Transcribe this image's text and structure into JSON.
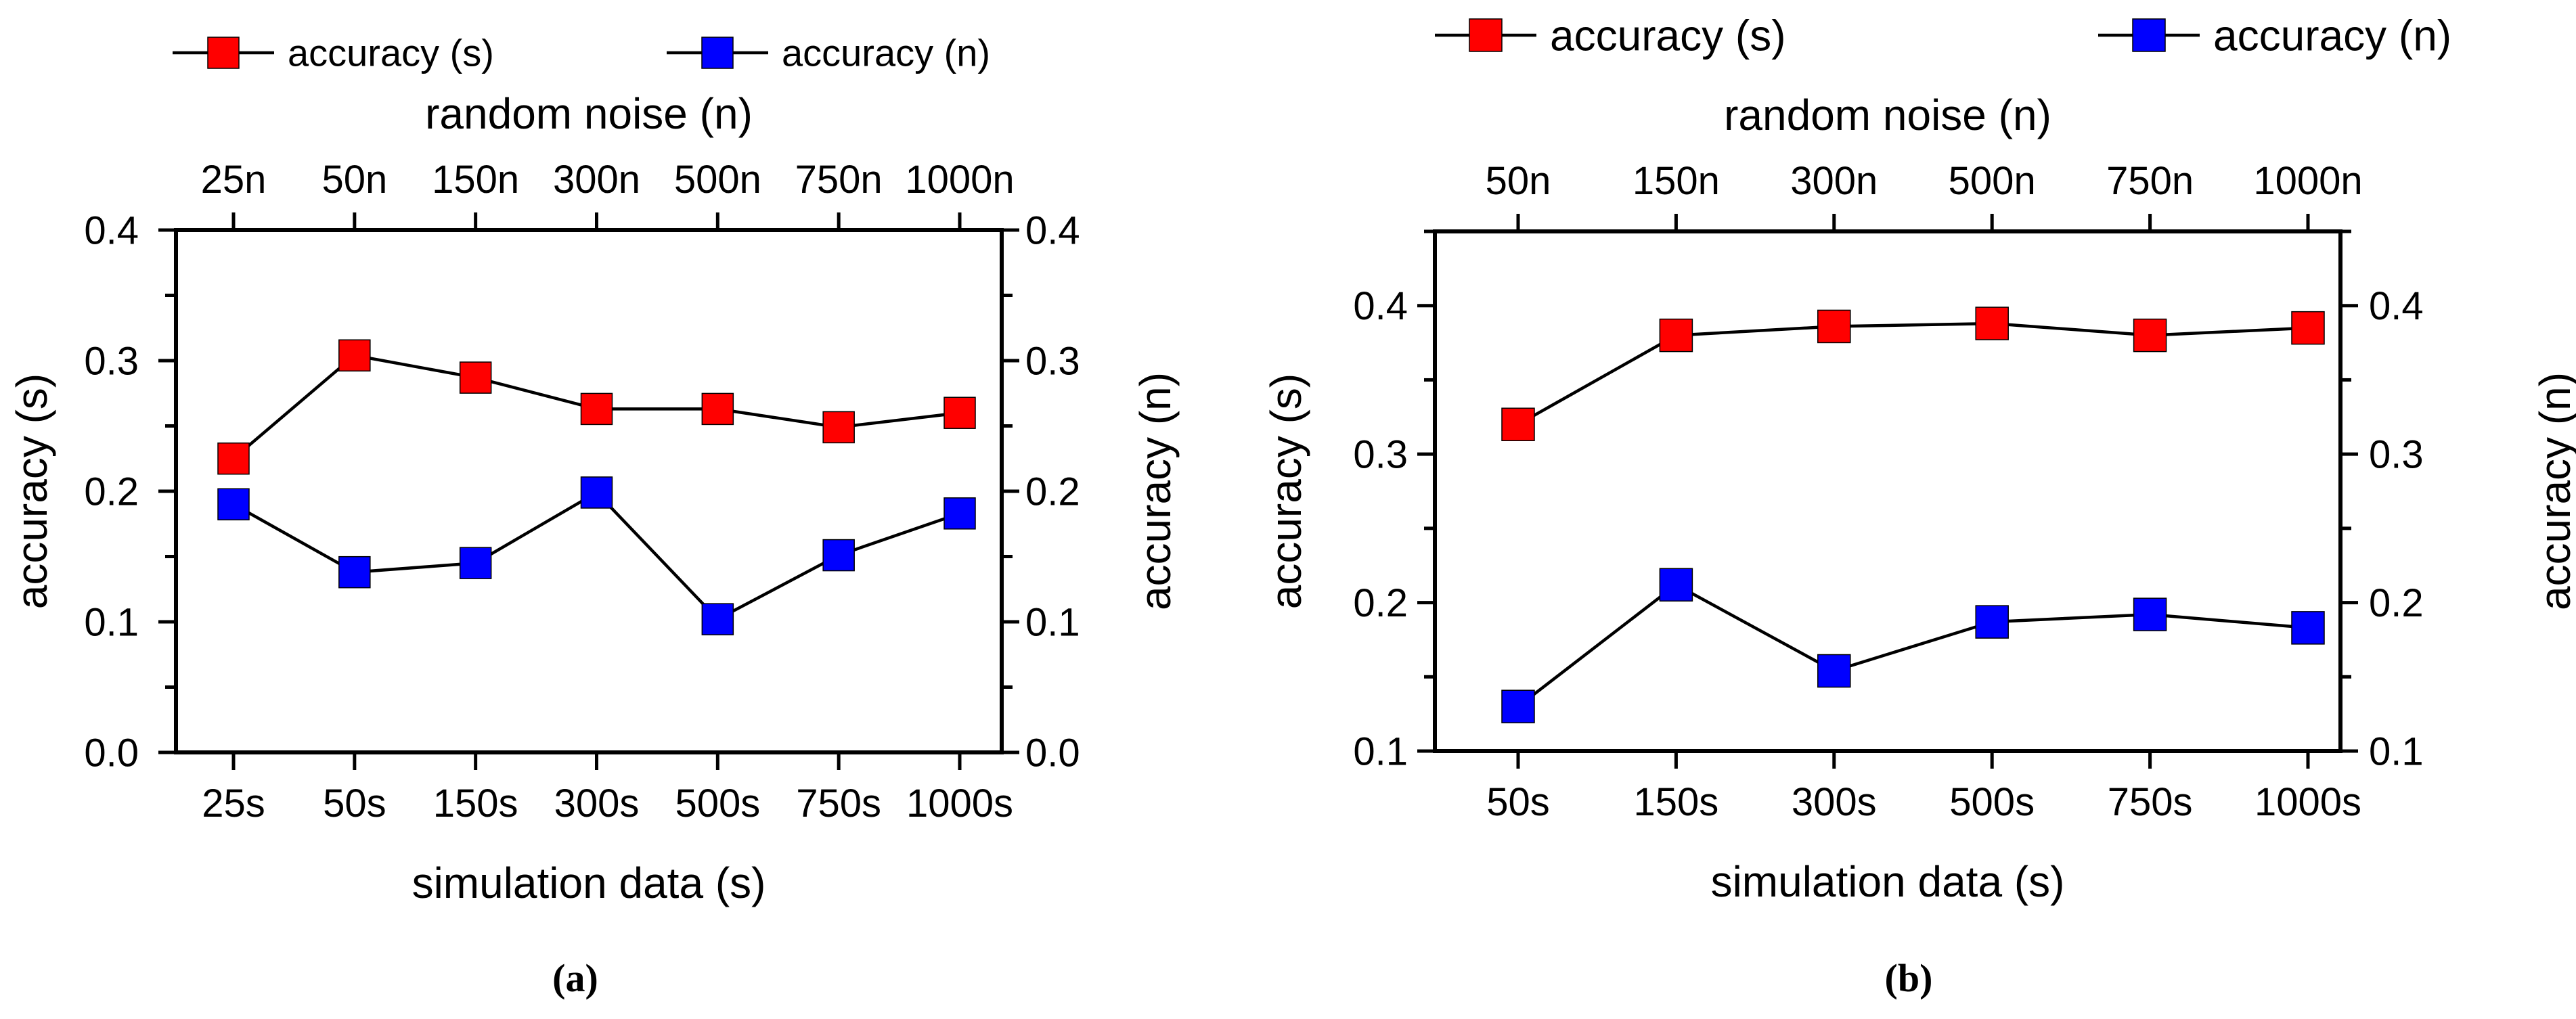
{
  "chart_data": [
    {
      "type": "line",
      "caption": "(a)",
      "x_bottom_label": "simulation data (s)",
      "x_top_label": "random noise (n)",
      "ylabel_left": "accuracy (s)",
      "ylabel_right": "accuracy (n)",
      "bottom_categories": [
        "25s",
        "50s",
        "150s",
        "300s",
        "500s",
        "750s",
        "1000s"
      ],
      "top_categories": [
        "25n",
        "50n",
        "150n",
        "300n",
        "500n",
        "750n",
        "1000n"
      ],
      "ylim": [
        0.0,
        0.4
      ],
      "yticks": [
        "0.0",
        "0.1",
        "0.2",
        "0.3",
        "0.4"
      ],
      "series": [
        {
          "name": "accuracy (s)",
          "color": "#ff0000",
          "values": [
            0.225,
            0.304,
            0.287,
            0.263,
            0.263,
            0.249,
            0.26
          ]
        },
        {
          "name": "accuracy (n)",
          "color": "#0000ff",
          "values": [
            0.19,
            0.138,
            0.145,
            0.199,
            0.102,
            0.151,
            0.183
          ]
        }
      ],
      "legend": [
        "accuracy (s)",
        "accuracy (n)"
      ]
    },
    {
      "type": "line",
      "caption": "(b)",
      "x_bottom_label": "simulation data (s)",
      "x_top_label": "random noise (n)",
      "ylabel_left": "accuracy (s)",
      "ylabel_right": "accuracy (n)",
      "bottom_categories": [
        "50s",
        "150s",
        "300s",
        "500s",
        "750s",
        "1000s"
      ],
      "top_categories": [
        "50n",
        "150n",
        "300n",
        "500n",
        "750n",
        "1000n"
      ],
      "ylim": [
        0.1,
        0.45
      ],
      "yticks": [
        "0.1",
        "0.2",
        "0.3",
        "0.4"
      ],
      "series": [
        {
          "name": "accuracy (s)",
          "color": "#ff0000",
          "values": [
            0.32,
            0.38,
            0.386,
            0.388,
            0.38,
            0.385
          ]
        },
        {
          "name": "accuracy (n)",
          "color": "#0000ff",
          "values": [
            0.13,
            0.212,
            0.154,
            0.187,
            0.192,
            0.183
          ]
        }
      ],
      "legend": [
        "accuracy (s)",
        "accuracy (n)"
      ]
    }
  ]
}
